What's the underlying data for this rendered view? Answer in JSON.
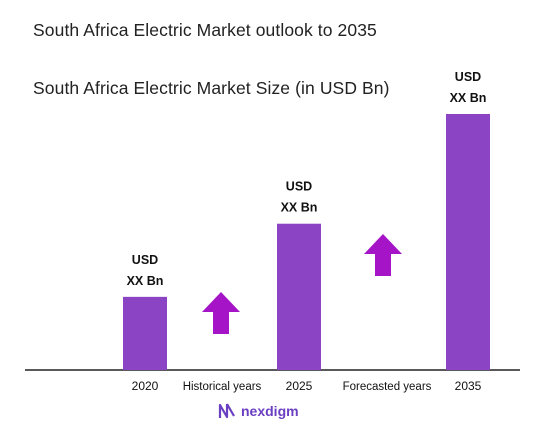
{
  "title": "South Africa Electric Market outlook to 2035",
  "subtitle": "South Africa Electric Market Size (in USD Bn)",
  "colors": {
    "bar": "#8a44c4",
    "arrow": "#a515c7",
    "axis": "#222222",
    "brand": "#6a3fc2"
  },
  "chart_data": {
    "type": "bar",
    "categories": [
      "2020",
      "2025",
      "2035"
    ],
    "values": [
      1.0,
      2.0,
      3.5
    ],
    "value_labels": [
      [
        "USD",
        "XX Bn"
      ],
      [
        "USD",
        "XX Bn"
      ],
      [
        "USD",
        "XX Bn"
      ]
    ],
    "period_labels": [
      "Historical years",
      "Forecasted years"
    ],
    "trend_arrows": [
      "up",
      "up"
    ],
    "grid": false,
    "legend": "none"
  },
  "brand": {
    "name": "nexdigm",
    "icon": "nexdigm-logo-icon"
  }
}
